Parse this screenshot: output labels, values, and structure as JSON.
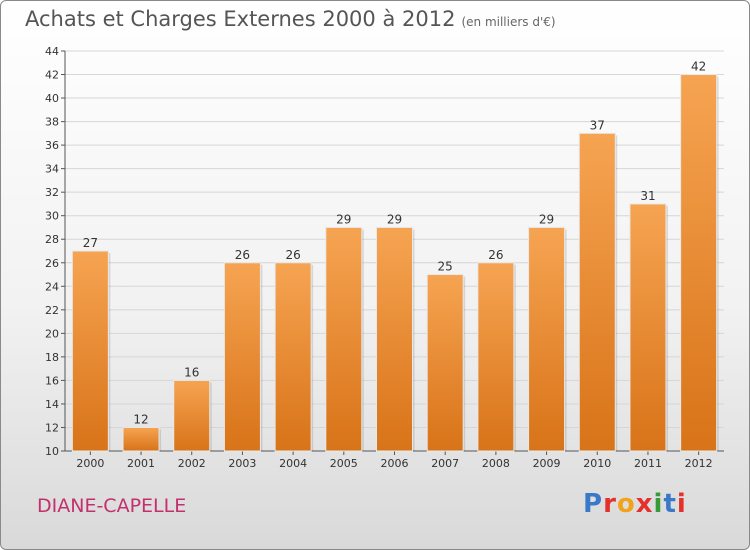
{
  "header": {
    "title": "Achats et Charges Externes 2000 à 2012",
    "subtitle": "(en milliers d'€)"
  },
  "footer": {
    "city": "DIANE-CAPELLE",
    "logo": {
      "letters": [
        "P",
        "r",
        "o",
        "x",
        "i",
        "t",
        "i"
      ],
      "colors": [
        "#3a78c8",
        "#e3322b",
        "#f2a21b",
        "#e3322b",
        "#3a9a3a",
        "#3a78c8",
        "#e3322b"
      ]
    }
  },
  "colors": {
    "bar_top": "#f6a452",
    "bar_bottom": "#d87318"
  },
  "chart_data": {
    "type": "bar",
    "categories": [
      "2000",
      "2001",
      "2002",
      "2003",
      "2004",
      "2005",
      "2006",
      "2007",
      "2008",
      "2009",
      "2010",
      "2011",
      "2012"
    ],
    "values": [
      27,
      12,
      16,
      26,
      26,
      29,
      29,
      25,
      26,
      29,
      37,
      31,
      42
    ],
    "title": "Achats et Charges Externes 2000 à 2012",
    "subtitle": "(en milliers d'€)",
    "xlabel": "",
    "ylabel": "",
    "ylim": [
      10,
      44
    ],
    "yticks": [
      10,
      12,
      14,
      16,
      18,
      20,
      22,
      24,
      26,
      28,
      30,
      32,
      34,
      36,
      38,
      40,
      42,
      44
    ],
    "grid": true,
    "legend": "none"
  }
}
